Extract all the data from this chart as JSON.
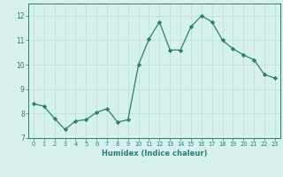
{
  "xlabel": "Humidex (Indice chaleur)",
  "x": [
    0,
    1,
    2,
    3,
    4,
    5,
    6,
    7,
    8,
    9,
    10,
    11,
    12,
    13,
    14,
    15,
    16,
    17,
    18,
    19,
    20,
    21,
    22,
    23
  ],
  "y": [
    8.4,
    8.3,
    7.8,
    7.35,
    7.7,
    7.75,
    8.05,
    8.2,
    7.65,
    7.75,
    10.0,
    11.05,
    11.75,
    10.6,
    10.6,
    11.55,
    12.0,
    11.75,
    11.0,
    10.65,
    10.4,
    10.2,
    9.6,
    9.45
  ],
  "ylim": [
    7.0,
    12.5
  ],
  "xlim": [
    -0.5,
    23.5
  ],
  "yticks": [
    7,
    8,
    9,
    10,
    11,
    12
  ],
  "xticks": [
    0,
    1,
    2,
    3,
    4,
    5,
    6,
    7,
    8,
    9,
    10,
    11,
    12,
    13,
    14,
    15,
    16,
    17,
    18,
    19,
    20,
    21,
    22,
    23
  ],
  "line_color": "#2e7d6e",
  "marker": "D",
  "bg_color": "#d6f0ee",
  "grid_color": "#b8dcd8",
  "axis_color": "#2e7d6e",
  "font_color": "#2e7d6e"
}
